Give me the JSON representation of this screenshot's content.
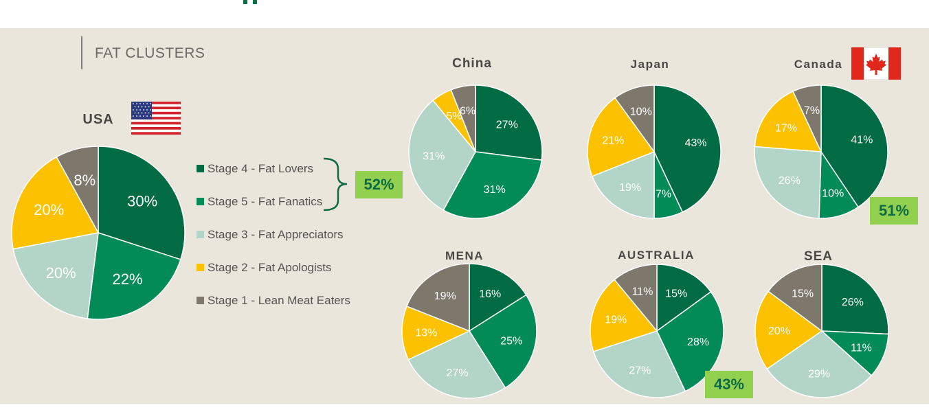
{
  "section_title": "FAT CLUSTERS",
  "colors": {
    "stage4": "#016b43",
    "stage5": "#038b57",
    "stage3": "#b3d5c8",
    "stage2": "#fcc100",
    "stage1": "#7d776c"
  },
  "legend": [
    {
      "label": "Stage 4 - Fat Lovers",
      "color_key": "stage4"
    },
    {
      "label": "Stage 5 - Fat Fanatics",
      "color_key": "stage5"
    },
    {
      "label": "Stage 3 - Fat Appreciators",
      "color_key": "stage3"
    },
    {
      "label": "Stage 2 - Fat Apologists",
      "color_key": "stage2"
    },
    {
      "label": "Stage 1 - Lean Meat Eaters",
      "color_key": "stage1"
    }
  ],
  "highlight_totals": {
    "usa": "52%",
    "canada": "51%",
    "australia": "43%"
  },
  "chart_data": [
    {
      "type": "pie",
      "title": "USA",
      "flag": "us-flag-icon",
      "categories": [
        "Stage 4 - Fat Lovers",
        "Stage 5 - Fat Fanatics",
        "Stage 3 - Fat Appreciators",
        "Stage 2 - Fat Apologists",
        "Stage 1 - Lean Meat Eaters"
      ],
      "values": [
        30,
        22,
        20,
        20,
        8
      ],
      "labels": [
        "30%",
        "22%",
        "20%",
        "20%",
        "8%"
      ]
    },
    {
      "type": "pie",
      "title": "China",
      "categories": [
        "Stage 4 - Fat Lovers",
        "Stage 5 - Fat Fanatics",
        "Stage 3 - Fat Appreciators",
        "Stage 2 - Fat Apologists",
        "Stage 1 - Lean Meat Eaters"
      ],
      "values": [
        27,
        31,
        31,
        5,
        6
      ],
      "labels": [
        "27%",
        "31%",
        "31%",
        "5%",
        "6%"
      ]
    },
    {
      "type": "pie",
      "title": "Japan",
      "categories": [
        "Stage 4 - Fat Lovers",
        "Stage 5 - Fat Fanatics",
        "Stage 3 - Fat Appreciators",
        "Stage 2 - Fat Apologists",
        "Stage 1 - Lean Meat Eaters"
      ],
      "values": [
        43,
        7,
        19,
        21,
        10
      ],
      "labels": [
        "43%",
        "7%",
        "19%",
        "21%",
        "10%"
      ]
    },
    {
      "type": "pie",
      "title": "Canada",
      "flag": "canada-flag-icon",
      "categories": [
        "Stage 4 - Fat Lovers",
        "Stage 5 - Fat Fanatics",
        "Stage 3 - Fat Appreciators",
        "Stage 2 - Fat Apologists",
        "Stage 1 - Lean Meat Eaters"
      ],
      "values": [
        41,
        10,
        26,
        17,
        7
      ],
      "labels": [
        "41%",
        "10%",
        "26%",
        "17%",
        "7%"
      ]
    },
    {
      "type": "pie",
      "title": "MENA",
      "categories": [
        "Stage 4 - Fat Lovers",
        "Stage 5 - Fat Fanatics",
        "Stage 3 - Fat Appreciators",
        "Stage 2 - Fat Apologists",
        "Stage 1 - Lean Meat Eaters"
      ],
      "values": [
        16,
        25,
        27,
        13,
        19
      ],
      "labels": [
        "16%",
        "25%",
        "27%",
        "13%",
        "19%"
      ]
    },
    {
      "type": "pie",
      "title": "AUSTRALIA",
      "categories": [
        "Stage 4 - Fat Lovers",
        "Stage 5 - Fat Fanatics",
        "Stage 3 - Fat Appreciators",
        "Stage 2 - Fat Apologists",
        "Stage 1 - Lean Meat Eaters"
      ],
      "values": [
        15,
        28,
        27,
        19,
        11
      ],
      "labels": [
        "15%",
        "28%",
        "27%",
        "19%",
        "11%"
      ]
    },
    {
      "type": "pie",
      "title": "SEA",
      "categories": [
        "Stage 4 - Fat Lovers",
        "Stage 5 - Fat Fanatics",
        "Stage 3 - Fat Appreciators",
        "Stage 2 - Fat Apologists",
        "Stage 1 - Lean Meat Eaters"
      ],
      "values": [
        26,
        11,
        29,
        20,
        15
      ],
      "labels": [
        "26%",
        "11%",
        "29%",
        "20%",
        "15%"
      ]
    }
  ]
}
